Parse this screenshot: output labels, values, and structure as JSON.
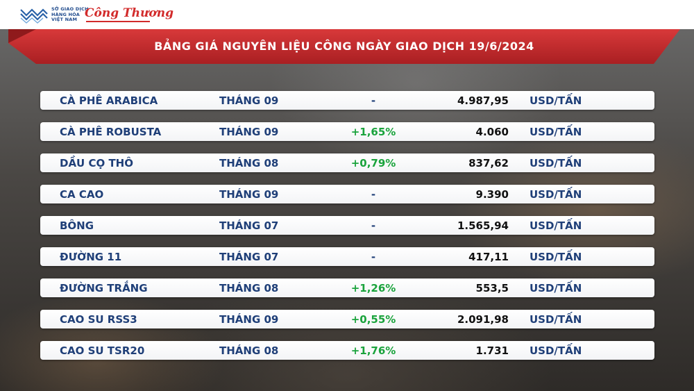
{
  "header": {
    "logo1": {
      "lines": [
        "SỞ GIAO DỊCH",
        "HÀNG HÓA",
        "VIỆT NAM"
      ],
      "brand_color": "#1f4a8c"
    },
    "logo2": {
      "text": "Công Thương",
      "brand_color": "#d22b2b"
    }
  },
  "title": "BẢNG GIÁ NGUYÊN LIỆU CÔNG NGÀY GIAO DỊCH 19/6/2024",
  "colors": {
    "banner": "#c62b2b",
    "up": "#1aa33c",
    "label": "#1f3f78"
  },
  "rows": [
    {
      "name": "CÀ PHÊ ARABICA",
      "month": "THÁNG 09",
      "change": "-",
      "price": "4.987,95",
      "unit": "USD/TẤN"
    },
    {
      "name": "CÀ PHÊ ROBUSTA",
      "month": "THÁNG 09",
      "change": "+1,65%",
      "price": "4.060",
      "unit": "USD/TẤN"
    },
    {
      "name": "DẦU CỌ THÔ",
      "month": "THÁNG 08",
      "change": "+0,79%",
      "price": "837,62",
      "unit": "USD/TẤN"
    },
    {
      "name": "CA CAO",
      "month": "THÁNG 09",
      "change": "-",
      "price": "9.390",
      "unit": "USD/TẤN"
    },
    {
      "name": "BÔNG",
      "month": "THÁNG 07",
      "change": "-",
      "price": "1.565,94",
      "unit": "USD/TẤN"
    },
    {
      "name": "ĐƯỜNG 11",
      "month": "THÁNG 07",
      "change": "-",
      "price": "417,11",
      "unit": "USD/TẤN"
    },
    {
      "name": "ĐƯỜNG TRẮNG",
      "month": "THÁNG 08",
      "change": "+1,26%",
      "price": "553,5",
      "unit": "USD/TẤN"
    },
    {
      "name": "CAO SU RSS3",
      "month": "THÁNG 09",
      "change": "+0,55%",
      "price": "2.091,98",
      "unit": "USD/TẤN"
    },
    {
      "name": "CAO SU TSR20",
      "month": "THÁNG 08",
      "change": "+1,76%",
      "price": "1.731",
      "unit": "USD/TẤN"
    }
  ]
}
